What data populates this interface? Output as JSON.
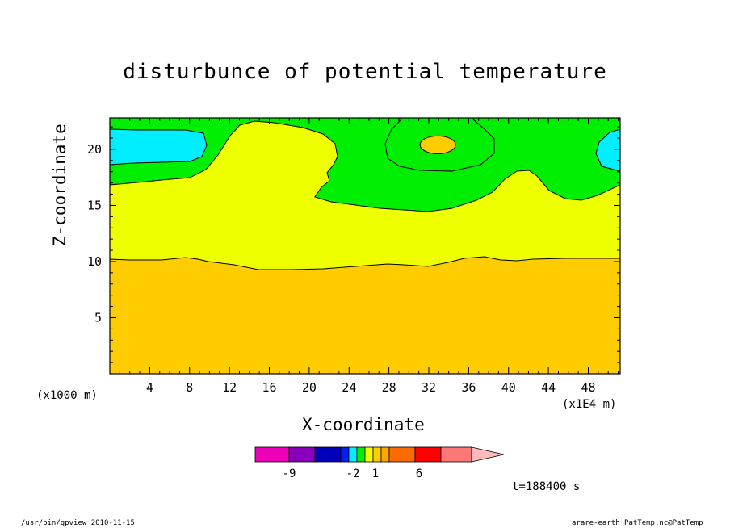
{
  "title": "disturbunce of potential temperature",
  "chart_data": {
    "type": "contour",
    "title": "disturbunce of potential temperature",
    "xlabel": "X-coordinate",
    "ylabel": "Z-coordinate",
    "x_unit": "(x1E4 m)",
    "y_unit": "(x1000 m)",
    "xlim": [
      0,
      51.2
    ],
    "ylim": [
      0,
      22.8
    ],
    "x_ticks": [
      4,
      8,
      12,
      16,
      20,
      24,
      28,
      32,
      36,
      40,
      44,
      48
    ],
    "y_ticks": [
      5,
      10,
      15,
      20
    ],
    "regions": [
      {
        "range": "2 to 3",
        "color": "#ffcc00",
        "desc": "below about z=10 and a small core near x=33, z=20.5"
      },
      {
        "range": "1 to 2",
        "color": "#eeff00",
        "desc": "layer from z=10 to about z=16-22"
      },
      {
        "range": "0 to 1",
        "color": "#00ee00",
        "desc": "upper layer"
      },
      {
        "range": "-1 to 0",
        "color": "#00eeff",
        "desc": "patches near z=20 at the left and right edges"
      }
    ],
    "colorbar": {
      "colors": [
        "#ee00bb",
        "#8800bb",
        "#0000bb",
        "#0022ee",
        "#00eeff",
        "#00ee00",
        "#eeff00",
        "#ffcc00",
        "#ffa500",
        "#ff6a00",
        "#ff0000",
        "#ff7777",
        "#ffbbbb"
      ],
      "labels": [
        "-9",
        "-2",
        "1",
        "6"
      ]
    },
    "time_label": "t=188400 s"
  },
  "footer": {
    "left": "/usr/bin/gpview   2010-11-15",
    "right": "arare-earth_PatTemp.nc@PatTemp"
  }
}
